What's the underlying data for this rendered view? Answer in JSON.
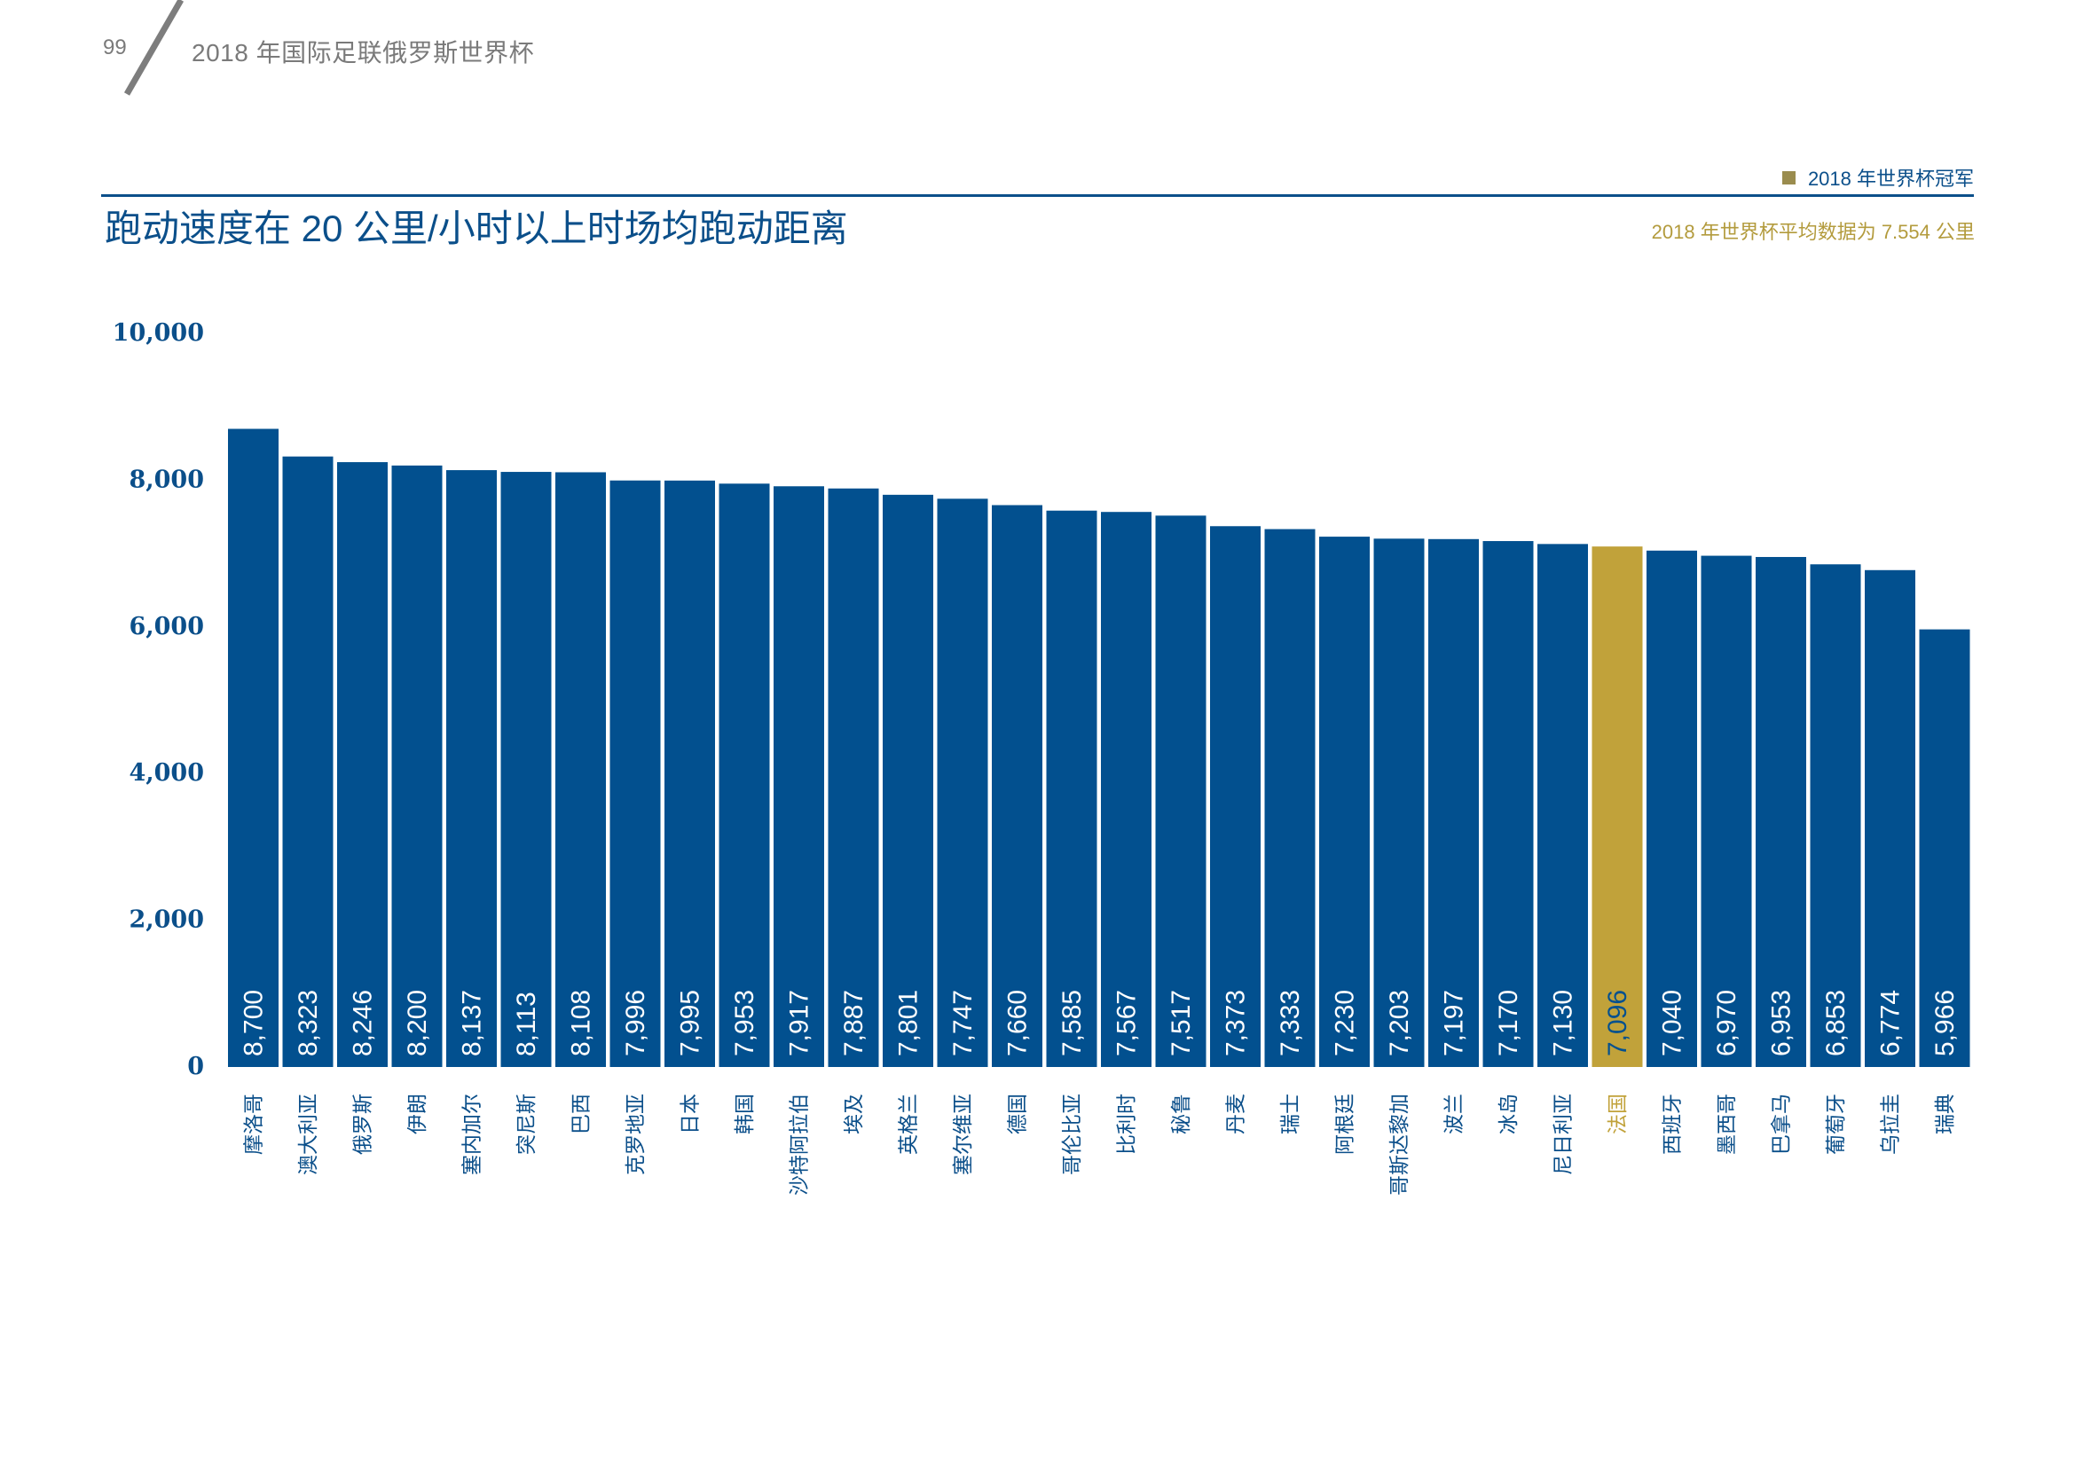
{
  "header": {
    "page_number": "99",
    "running_title": "2018 年国际足联俄罗斯世界杯"
  },
  "legend": {
    "label": "2018 年世界杯冠军",
    "color": "#9a8c4e"
  },
  "note": "2018 年世界杯平均数据为 7.554 公里",
  "colors": {
    "bar": "#02508f",
    "highlight": "#c1a23a",
    "text": "#0b4f8a"
  },
  "chart_data": {
    "type": "bar",
    "title": "跑动速度在 20 公里/小时以上时场均跑动距离",
    "xlabel": "",
    "ylabel": "",
    "ylim": [
      0,
      10000
    ],
    "yticks": [
      0,
      2000,
      4000,
      6000,
      8000,
      10000
    ],
    "ytick_labels": [
      "0",
      "2,000",
      "4,000",
      "6,000",
      "8,000",
      "10,000"
    ],
    "grid": false,
    "legend_position": "top-right",
    "average_line_value": 7554,
    "highlight_category": "法国",
    "categories": [
      "摩洛哥",
      "澳大利亚",
      "俄罗斯",
      "伊朗",
      "塞内加尔",
      "突尼斯",
      "巴西",
      "克罗地亚",
      "日本",
      "韩国",
      "沙特阿拉伯",
      "埃及",
      "英格兰",
      "塞尔维亚",
      "德国",
      "哥伦比亚",
      "比利时",
      "秘鲁",
      "丹麦",
      "瑞士",
      "阿根廷",
      "哥斯达黎加",
      "波兰",
      "冰岛",
      "尼日利亚",
      "法国",
      "西班牙",
      "墨西哥",
      "巴拿马",
      "葡萄牙",
      "乌拉圭",
      "瑞典"
    ],
    "values": [
      8700,
      8323,
      8246,
      8200,
      8137,
      8113,
      8108,
      7996,
      7995,
      7953,
      7917,
      7887,
      7801,
      7747,
      7660,
      7585,
      7567,
      7517,
      7373,
      7333,
      7230,
      7203,
      7197,
      7170,
      7130,
      7096,
      7040,
      6970,
      6953,
      6853,
      6774,
      5966
    ],
    "value_labels": [
      "8,700",
      "8,323",
      "8,246",
      "8,200",
      "8,137",
      "8,113",
      "8,108",
      "7,996",
      "7,995",
      "7,953",
      "7,917",
      "7,887",
      "7,801",
      "7,747",
      "7,660",
      "7,585",
      "7,567",
      "7,517",
      "7,373",
      "7,333",
      "7,230",
      "7,203",
      "7,197",
      "7,170",
      "7,130",
      "7,096",
      "7,040",
      "6,970",
      "6,953",
      "6,853",
      "6,774",
      "5,966"
    ]
  }
}
